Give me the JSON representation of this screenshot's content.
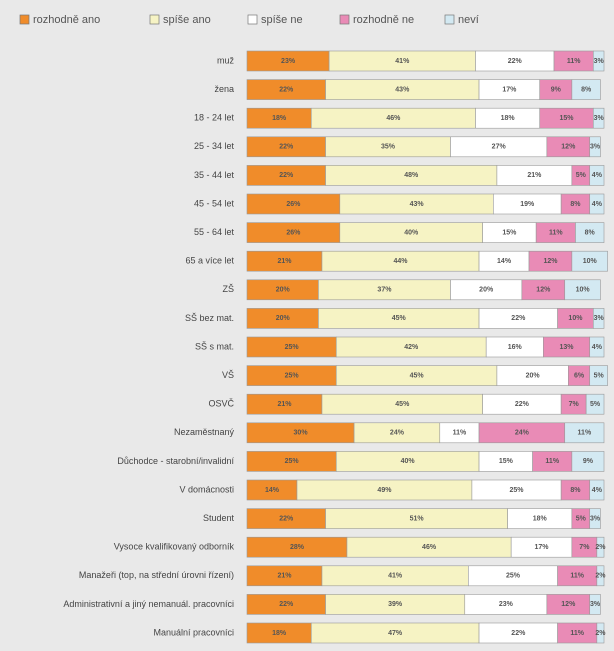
{
  "chart_data": {
    "type": "stacked-bar-horizontal",
    "categories": [
      "muž",
      "žena",
      "18 - 24 let",
      "25 - 34 let",
      "35 - 44 let",
      "45 - 54 let",
      "55 - 64 let",
      "65 a více let",
      "ZŠ",
      "SŠ bez mat.",
      "SŠ s mat.",
      "VŠ",
      "OSVČ",
      "Nezaměstnaný",
      "Důchodce - starobní/invalidní",
      "V domácnosti",
      "Student",
      "Vysoce kvalifikovaný odborník",
      "Manažeři (top, na střední úrovni řízení)",
      "Administrativní a jiný nemanuál. pracovníci",
      "Manuální pracovníci"
    ],
    "xlim": [
      0,
      100
    ],
    "series": [
      {
        "name": "rozhodně ano",
        "color": "#f08c2a",
        "values": [
          23,
          22,
          18,
          22,
          22,
          26,
          26,
          21,
          20,
          20,
          25,
          25,
          21,
          30,
          25,
          14,
          22,
          28,
          21,
          22,
          18
        ],
        "value_labels": [
          "23%",
          "22%",
          "18%",
          "22%",
          "22%",
          "26%",
          "26%",
          "21%",
          "20%",
          "20%",
          "25%",
          "25%",
          "21%",
          "30%",
          "25%",
          "14%",
          "22%",
          "28%",
          "21%",
          "22%",
          "18%"
        ]
      },
      {
        "name": "spíše ano",
        "color": "#f6f3c4",
        "values": [
          41,
          43,
          46,
          35,
          48,
          43,
          40,
          44,
          37,
          45,
          42,
          45,
          45,
          24,
          40,
          49,
          51,
          46,
          41,
          39,
          47
        ],
        "value_labels": [
          "41%",
          "43%",
          "46%",
          "35%",
          "48%",
          "43%",
          "40%",
          "44%",
          "37%",
          "45%",
          "42%",
          "45%",
          "45%",
          "24%",
          "40%",
          "49%",
          "51%",
          "46%",
          "41%",
          "39%",
          "47%"
        ]
      },
      {
        "name": "spíše ne",
        "color": "#ffffff",
        "values": [
          22,
          17,
          18,
          27,
          21,
          19,
          15,
          14,
          20,
          22,
          16,
          20,
          22,
          11,
          15,
          25,
          18,
          17,
          25,
          23,
          22
        ],
        "value_labels": [
          "22%",
          "17%",
          "18%",
          "27%",
          "21%",
          "19%",
          "15%",
          "14%",
          "20%",
          "22%",
          "16%",
          "20%",
          "22%",
          "11%",
          "15%",
          "25%",
          "18%",
          "17%",
          "25%",
          "23%",
          "22%"
        ]
      },
      {
        "name": "rozhodně ne",
        "color": "#e98bb6",
        "values": [
          11,
          9,
          15,
          12,
          5,
          8,
          11,
          12,
          12,
          10,
          13,
          6,
          7,
          24,
          11,
          8,
          5,
          7,
          11,
          12,
          11
        ],
        "value_labels": [
          "11%",
          "9%",
          "15%",
          "12%",
          "5%",
          "8%",
          "11%",
          "12%",
          "12%",
          "10%",
          "13%",
          "6%",
          "7%",
          "24%",
          "11%",
          "8%",
          "5%",
          "7%",
          "11%",
          "12%",
          "11%"
        ]
      },
      {
        "name": "neví",
        "color": "#d3e9f2",
        "values": [
          3,
          8,
          3,
          3,
          4,
          4,
          8,
          10,
          10,
          3,
          4,
          5,
          5,
          11,
          9,
          4,
          3,
          2,
          2,
          3,
          2
        ],
        "value_labels": [
          "3%",
          "8%",
          "3%",
          "3%",
          "4%",
          "4%",
          "8%",
          "10%",
          "10%",
          "3%",
          "4%",
          "5%",
          "5%",
          "11%",
          "9%",
          "4%",
          "3%",
          "2%",
          "2%",
          "3%",
          "2%"
        ]
      }
    ]
  }
}
